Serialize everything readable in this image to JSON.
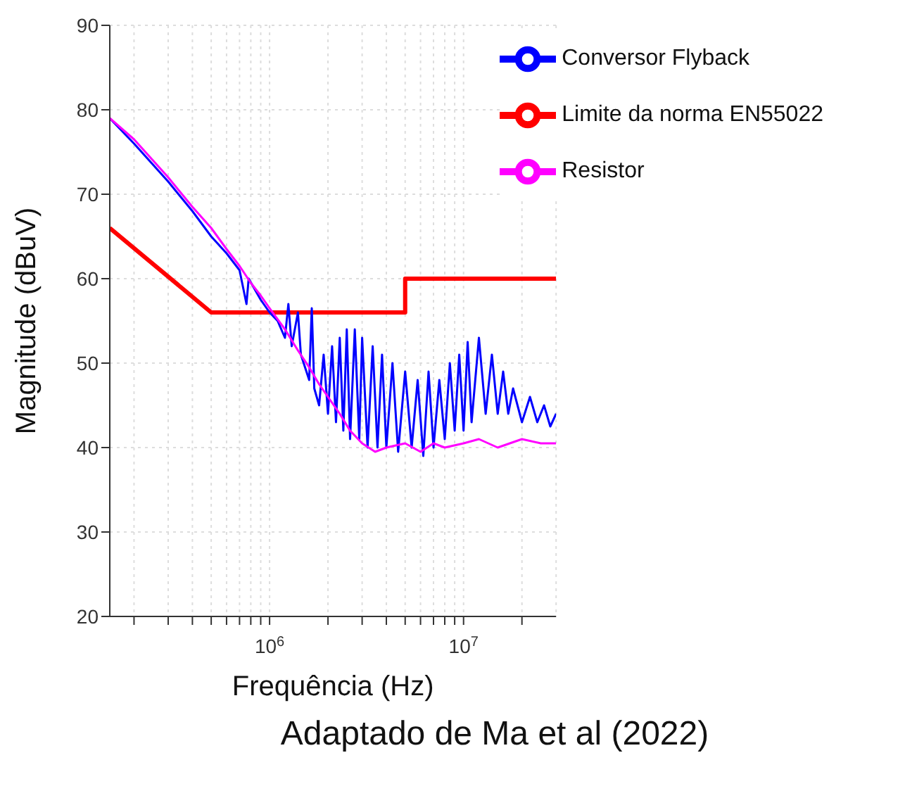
{
  "chart_data": {
    "type": "line",
    "xlabel": "Frequência (Hz)",
    "ylabel": "Magnitude (dBuV)",
    "annotations": [
      "Adaptado de Ma et al (2022)"
    ],
    "log": "x",
    "grid": true,
    "legend": "top right",
    "marker": "none",
    "xlim": [
      150000,
      30000000
    ],
    "xticks": [
      {
        "value": 200000,
        "label": null
      },
      {
        "value": 300000,
        "label": null
      },
      {
        "value": 400000,
        "label": null
      },
      {
        "value": 500000,
        "label": null
      },
      {
        "value": 600000,
        "label": null
      },
      {
        "value": 700000,
        "label": null
      },
      {
        "value": 800000,
        "label": null
      },
      {
        "value": 900000,
        "label": null
      },
      {
        "value": 1000000,
        "label": "10$^{6}$"
      },
      {
        "value": 2000000,
        "label": null
      },
      {
        "value": 3000000,
        "label": null
      },
      {
        "value": 4000000,
        "label": null
      },
      {
        "value": 5000000,
        "label": null
      },
      {
        "value": 6000000,
        "label": null
      },
      {
        "value": 7000000,
        "label": null
      },
      {
        "value": 8000000,
        "label": null
      },
      {
        "value": 9000000,
        "label": null
      },
      {
        "value": 10000000,
        "label": "10$^{7}$"
      },
      {
        "value": 20000000,
        "label": null
      }
    ],
    "ylim": [
      20,
      90
    ],
    "yticks": [
      20,
      30,
      40,
      50,
      60,
      70,
      80,
      90
    ],
    "series": [
      {
        "name": "Limite da norma EN55022",
        "color": "#ff0000",
        "x": [
          150000,
          500000,
          5000000,
          5000000,
          30000000
        ],
        "values": [
          66,
          56,
          56,
          60,
          60
        ]
      },
      {
        "name": "Conversor Flyback",
        "color": "#0000ff",
        "x": [
          150000,
          200000,
          300000,
          400000,
          500000,
          600000,
          700000,
          760000,
          780000,
          900000,
          1000000,
          1100000,
          1200000,
          1250000,
          1300000,
          1400000,
          1450000,
          1600000,
          1650000,
          1700000,
          1800000,
          1900000,
          2000000,
          2100000,
          2200000,
          2300000,
          2400000,
          2500000,
          2600000,
          2750000,
          2900000,
          3000000,
          3200000,
          3400000,
          3600000,
          3800000,
          4000000,
          4300000,
          4600000,
          5000000,
          5400000,
          5800000,
          6200000,
          6600000,
          7000000,
          7500000,
          8000000,
          8500000,
          9000000,
          9500000,
          10000000,
          10500000,
          11000000,
          12000000,
          13000000,
          14000000,
          15000000,
          16000000,
          17000000,
          18000000,
          20000000,
          22000000,
          24000000,
          26000000,
          28000000,
          30000000
        ],
        "values": [
          79,
          76,
          71.5,
          68,
          65,
          63,
          61,
          57,
          60,
          57.5,
          56,
          55,
          53,
          57,
          52,
          56,
          51,
          48,
          56.5,
          47,
          45,
          51,
          44,
          52,
          43,
          53,
          42,
          54,
          41,
          54,
          41,
          53,
          40,
          52,
          40,
          51,
          40,
          50,
          39.5,
          49,
          40,
          48,
          39,
          49,
          40,
          48,
          41,
          50,
          42,
          51,
          42,
          52.5,
          43,
          53,
          44,
          51,
          44,
          49,
          44,
          47,
          43,
          46,
          43,
          45,
          42.5,
          44
        ]
      },
      {
        "name": "Resistor",
        "color": "#ff00ff",
        "x": [
          150000,
          200000,
          300000,
          400000,
          500000,
          600000,
          700000,
          800000,
          900000,
          1000000,
          1200000,
          1400000,
          1600000,
          1800000,
          2000000,
          2300000,
          2600000,
          3000000,
          3500000,
          4000000,
          5000000,
          6000000,
          7000000,
          8000000,
          10000000,
          12000000,
          15000000,
          20000000,
          25000000,
          30000000
        ],
        "values": [
          79,
          76.5,
          72,
          68.5,
          66,
          63.5,
          61.5,
          59.5,
          58,
          56.5,
          54,
          51.5,
          49.5,
          47.5,
          46,
          44,
          42,
          40.5,
          39.5,
          40,
          40.5,
          39.5,
          40.5,
          40,
          40.5,
          41,
          40,
          41,
          40.5,
          40.5
        ]
      }
    ]
  }
}
